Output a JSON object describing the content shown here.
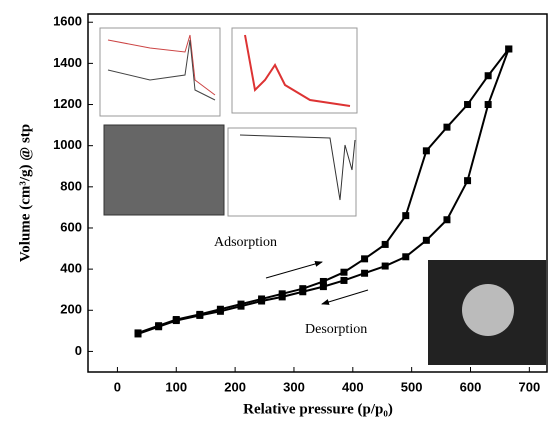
{
  "chart_data": {
    "type": "line",
    "x_label": "Relative pressure (p/p₀)",
    "y_label": "Volume (cm³/g) @ stp",
    "x": [
      35,
      70,
      100,
      140,
      175,
      210,
      245,
      280,
      315,
      350,
      385,
      420,
      455,
      490,
      525,
      560,
      595,
      630,
      665
    ],
    "series": [
      {
        "name": "Adsorption",
        "color": "#000000",
        "values": [
          85,
          120,
          150,
          175,
          195,
          220,
          245,
          265,
          290,
          315,
          345,
          380,
          415,
          460,
          540,
          640,
          830,
          1200,
          1470
        ]
      },
      {
        "name": "Desorption",
        "color": "#000000",
        "values": [
          90,
          125,
          155,
          180,
          205,
          230,
          255,
          280,
          305,
          340,
          385,
          450,
          520,
          660,
          975,
          1090,
          1200,
          1340,
          1470
        ]
      }
    ],
    "xlim": [
      -50,
      730
    ],
    "xticks": [
      0,
      100,
      200,
      300,
      400,
      500,
      600,
      700
    ],
    "ylim": [
      -100,
      1640
    ],
    "yticks": [
      0,
      200,
      400,
      600,
      800,
      1000,
      1200,
      1400,
      1600
    ]
  }
}
